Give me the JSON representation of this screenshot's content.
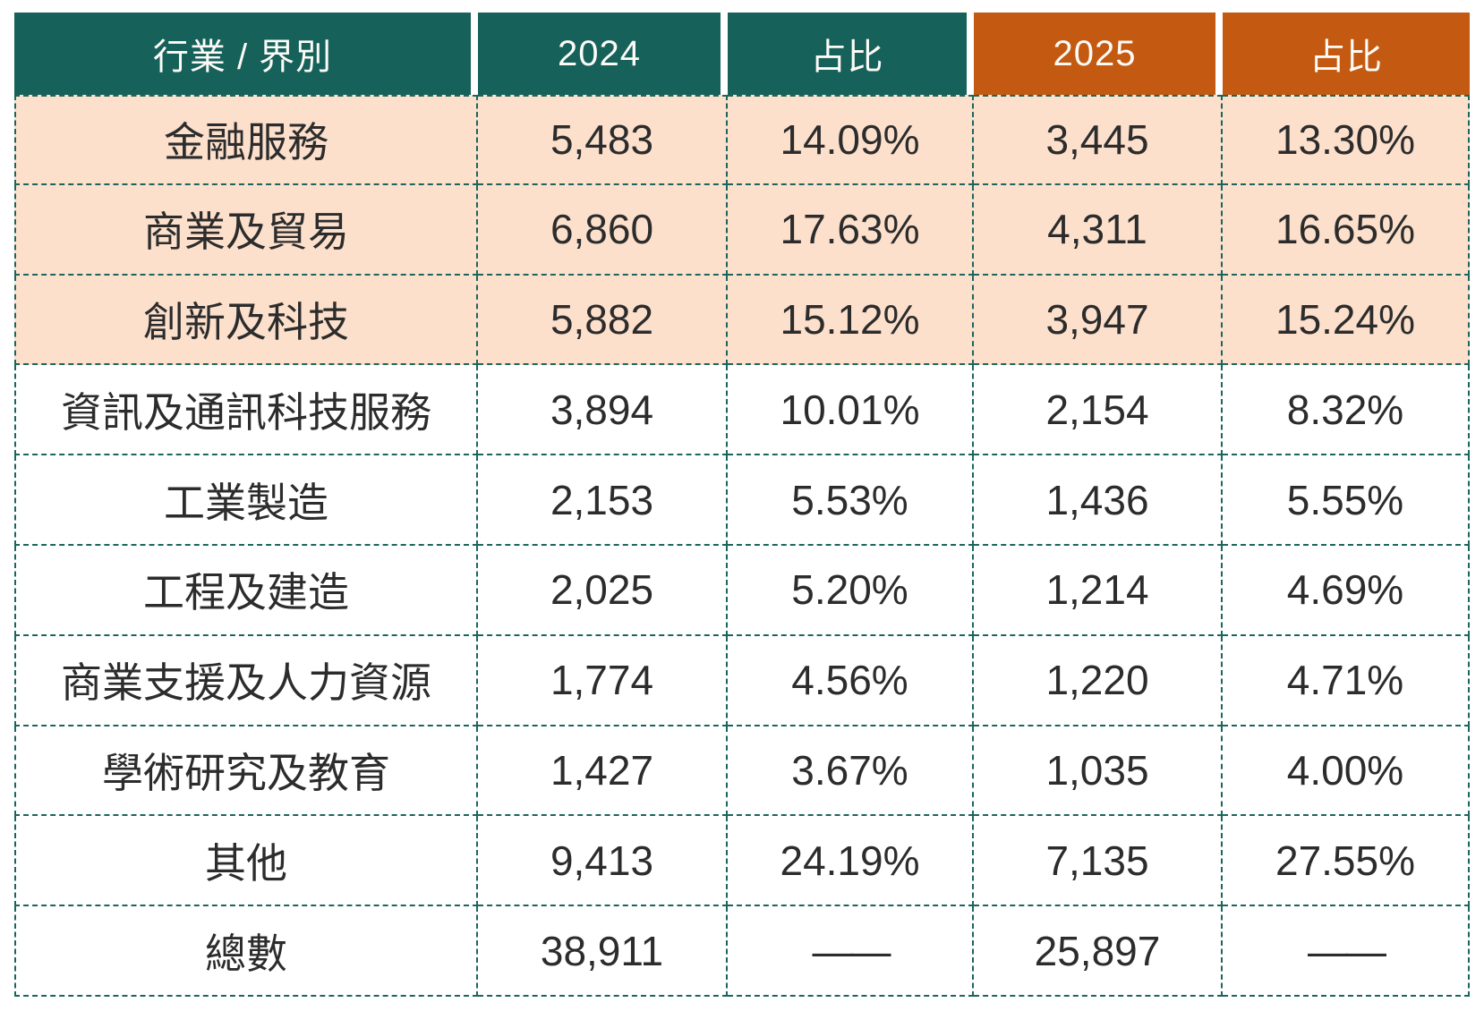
{
  "table": {
    "header": {
      "industry": "行業 / 界別",
      "y2024": "2024",
      "share2024": "占比",
      "y2025": "2025",
      "share2025": "占比"
    },
    "rows": [
      {
        "industry": "金融服務",
        "v2024": "5,483",
        "p2024": "14.09%",
        "v2025": "3,445",
        "p2025": "13.30%"
      },
      {
        "industry": "商業及貿易",
        "v2024": "6,860",
        "p2024": "17.63%",
        "v2025": "4,311",
        "p2025": "16.65%"
      },
      {
        "industry": "創新及科技",
        "v2024": "5,882",
        "p2024": "15.12%",
        "v2025": "3,947",
        "p2025": "15.24%"
      },
      {
        "industry": "資訊及通訊科技服務",
        "v2024": "3,894",
        "p2024": "10.01%",
        "v2025": "2,154",
        "p2025": "8.32%"
      },
      {
        "industry": "工業製造",
        "v2024": "2,153",
        "p2024": "5.53%",
        "v2025": "1,436",
        "p2025": "5.55%"
      },
      {
        "industry": "工程及建造",
        "v2024": "2,025",
        "p2024": "5.20%",
        "v2025": "1,214",
        "p2025": "4.69%"
      },
      {
        "industry": "商業支援及人力資源",
        "v2024": "1,774",
        "p2024": "4.56%",
        "v2025": "1,220",
        "p2025": "4.71%"
      },
      {
        "industry": "學術研究及教育",
        "v2024": "1,427",
        "p2024": "3.67%",
        "v2025": "1,035",
        "p2025": "4.00%"
      },
      {
        "industry": "其他",
        "v2024": "9,413",
        "p2024": "24.19%",
        "v2025": "7,135",
        "p2025": "27.55%"
      }
    ],
    "total": {
      "industry": "總數",
      "v2024": "38,911",
      "p2024": "——",
      "v2025": "25,897",
      "p2025": "——"
    },
    "colors": {
      "header_teal": "#16615a",
      "header_orange": "#c45a11",
      "highlight_peach": "#fce0cc",
      "border_dash": "#1a665e",
      "body_text": "#2c2c2c",
      "header_text": "#fdfbf7"
    }
  },
  "chart_data": {
    "type": "table",
    "title": "",
    "columns": [
      "行業 / 界別",
      "2024",
      "占比",
      "2025",
      "占比"
    ],
    "rows": [
      [
        "金融服務",
        5483,
        "14.09%",
        3445,
        "13.30%"
      ],
      [
        "商業及貿易",
        6860,
        "17.63%",
        4311,
        "16.65%"
      ],
      [
        "創新及科技",
        5882,
        "15.12%",
        3947,
        "15.24%"
      ],
      [
        "資訊及通訊科技服務",
        3894,
        "10.01%",
        2154,
        "8.32%"
      ],
      [
        "工業製造",
        2153,
        "5.53%",
        1436,
        "5.55%"
      ],
      [
        "工程及建造",
        2025,
        "5.20%",
        1214,
        "4.69%"
      ],
      [
        "商業支援及人力資源",
        1774,
        "4.56%",
        1220,
        "4.71%"
      ],
      [
        "學術研究及教育",
        1427,
        "3.67%",
        1035,
        "4.00%"
      ],
      [
        "其他",
        9413,
        "24.19%",
        7135,
        "27.55%"
      ],
      [
        "總數",
        38911,
        null,
        25897,
        null
      ]
    ],
    "highlighted_rows": [
      "金融服務",
      "商業及貿易",
      "創新及科技"
    ],
    "layout": {
      "header_colors": [
        "teal",
        "teal",
        "teal",
        "orange",
        "orange"
      ],
      "grid": "dashed"
    }
  }
}
